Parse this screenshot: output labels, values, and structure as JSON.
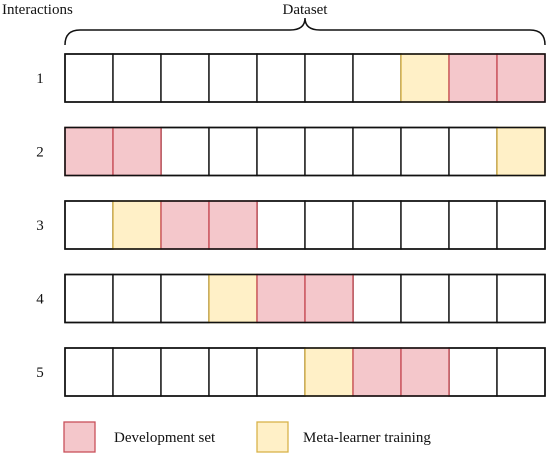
{
  "header": {
    "interactions_label": "Interactions",
    "dataset_label": "Dataset"
  },
  "colors": {
    "development": "#f4c7cb",
    "development_border": "#c8505a",
    "meta": "#fff0c7",
    "meta_border": "#d8b34a",
    "empty": "#ffffff",
    "outline": "#111111"
  },
  "rows": [
    {
      "label": "1",
      "cells": [
        "empty",
        "empty",
        "empty",
        "empty",
        "empty",
        "empty",
        "empty",
        "meta",
        "development",
        "development"
      ]
    },
    {
      "label": "2",
      "cells": [
        "development",
        "development",
        "empty",
        "empty",
        "empty",
        "empty",
        "empty",
        "empty",
        "empty",
        "meta"
      ]
    },
    {
      "label": "3",
      "cells": [
        "empty",
        "meta",
        "development",
        "development",
        "empty",
        "empty",
        "empty",
        "empty",
        "empty",
        "empty"
      ]
    },
    {
      "label": "4",
      "cells": [
        "empty",
        "empty",
        "empty",
        "meta",
        "development",
        "development",
        "empty",
        "empty",
        "empty",
        "empty"
      ]
    },
    {
      "label": "5",
      "cells": [
        "empty",
        "empty",
        "empty",
        "empty",
        "empty",
        "meta",
        "development",
        "development",
        "empty",
        "empty"
      ]
    }
  ],
  "legend": [
    {
      "kind": "development",
      "label": "Development set"
    },
    {
      "kind": "meta",
      "label": "Meta-learner training"
    }
  ]
}
